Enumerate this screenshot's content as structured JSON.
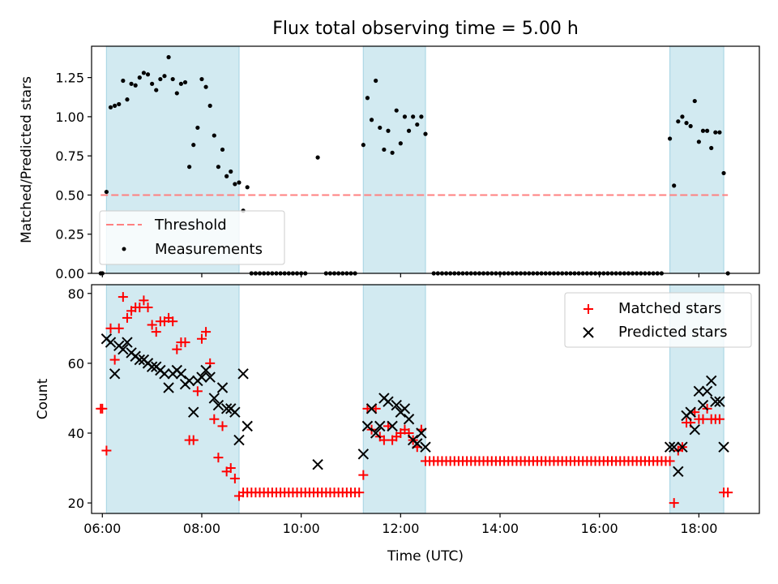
{
  "chart_data": {
    "title": "Flux total observing time = 5.00 h",
    "xlabel": "Time (UTC)",
    "xlim": [
      "05:47",
      "19:13"
    ],
    "x_ticks": [
      "06:00",
      "08:00",
      "10:00",
      "12:00",
      "14:00",
      "16:00",
      "18:00"
    ],
    "shaded_intervals": [
      [
        "06:05",
        "08:45"
      ],
      [
        "11:15",
        "12:30"
      ],
      [
        "17:25",
        "18:30"
      ]
    ],
    "colors": {
      "shade": "#add8e6",
      "threshold": "#ff8080",
      "matched": "#ff0000",
      "predicted": "#000000"
    },
    "top": {
      "type": "scatter",
      "ylabel": "Matched/Predicted stars",
      "ylim": [
        0,
        1.45
      ],
      "y_ticks": [
        0.0,
        0.25,
        0.5,
        0.75,
        1.0,
        1.25
      ],
      "legend_position": "lower-left",
      "threshold": {
        "name": "Threshold",
        "value": 0.5,
        "x_range": [
          "05:58",
          "18:35"
        ]
      },
      "measurements": {
        "name": "Measurements",
        "points": [
          [
            "05:58",
            0.0
          ],
          [
            "06:00",
            0.0
          ],
          [
            "06:05",
            0.52
          ],
          [
            "06:10",
            1.06
          ],
          [
            "06:15",
            1.07
          ],
          [
            "06:20",
            1.08
          ],
          [
            "06:25",
            1.23
          ],
          [
            "06:30",
            1.11
          ],
          [
            "06:35",
            1.21
          ],
          [
            "06:40",
            1.2
          ],
          [
            "06:45",
            1.25
          ],
          [
            "06:50",
            1.28
          ],
          [
            "06:55",
            1.27
          ],
          [
            "07:00",
            1.21
          ],
          [
            "07:05",
            1.17
          ],
          [
            "07:10",
            1.24
          ],
          [
            "07:15",
            1.26
          ],
          [
            "07:20",
            1.38
          ],
          [
            "07:25",
            1.24
          ],
          [
            "07:30",
            1.15
          ],
          [
            "07:35",
            1.21
          ],
          [
            "07:40",
            1.22
          ],
          [
            "07:45",
            0.68
          ],
          [
            "07:50",
            0.82
          ],
          [
            "07:55",
            0.93
          ],
          [
            "08:00",
            1.24
          ],
          [
            "08:05",
            1.19
          ],
          [
            "08:10",
            1.07
          ],
          [
            "08:15",
            0.88
          ],
          [
            "08:20",
            0.68
          ],
          [
            "08:25",
            0.79
          ],
          [
            "08:30",
            0.62
          ],
          [
            "08:35",
            0.65
          ],
          [
            "08:40",
            0.57
          ],
          [
            "08:45",
            0.58
          ],
          [
            "08:50",
            0.4
          ],
          [
            "08:55",
            0.55
          ],
          [
            "10:20",
            0.74
          ],
          [
            "11:15",
            0.82
          ],
          [
            "11:20",
            1.12
          ],
          [
            "11:25",
            0.98
          ],
          [
            "11:30",
            1.23
          ],
          [
            "11:35",
            0.93
          ],
          [
            "11:40",
            0.79
          ],
          [
            "11:45",
            0.91
          ],
          [
            "11:50",
            0.77
          ],
          [
            "11:55",
            1.04
          ],
          [
            "12:00",
            0.83
          ],
          [
            "12:05",
            1.0
          ],
          [
            "12:10",
            0.91
          ],
          [
            "12:15",
            1.0
          ],
          [
            "12:20",
            0.95
          ],
          [
            "12:25",
            1.0
          ],
          [
            "12:30",
            0.89
          ],
          [
            "17:25",
            0.86
          ],
          [
            "17:30",
            0.56
          ],
          [
            "17:35",
            0.97
          ],
          [
            "17:40",
            1.0
          ],
          [
            "17:45",
            0.96
          ],
          [
            "17:50",
            0.94
          ],
          [
            "17:55",
            1.1
          ],
          [
            "18:00",
            0.84
          ],
          [
            "18:05",
            0.91
          ],
          [
            "18:10",
            0.91
          ],
          [
            "18:15",
            0.8
          ],
          [
            "18:20",
            0.9
          ],
          [
            "18:25",
            0.9
          ],
          [
            "18:30",
            0.64
          ],
          [
            "18:35",
            0.0
          ]
        ],
        "zero_intervals": [
          {
            "from": "09:00",
            "to": "10:05",
            "step_min": 5
          },
          {
            "from": "10:30",
            "to": "11:05",
            "step_min": 5
          },
          {
            "from": "12:40",
            "to": "17:15",
            "step_min": 5
          }
        ]
      }
    },
    "bottom": {
      "type": "scatter",
      "ylabel": "Count",
      "ylim": [
        17,
        82.5
      ],
      "y_ticks": [
        20,
        40,
        60,
        80
      ],
      "legend_position": "upper-right",
      "series": [
        {
          "name": "Matched stars",
          "marker": "plus",
          "points": [
            [
              "05:58",
              47
            ],
            [
              "06:00",
              47
            ],
            [
              "06:05",
              35
            ],
            [
              "06:10",
              70
            ],
            [
              "06:15",
              61
            ],
            [
              "06:20",
              70
            ],
            [
              "06:25",
              79
            ],
            [
              "06:30",
              73
            ],
            [
              "06:35",
              75
            ],
            [
              "06:40",
              76
            ],
            [
              "06:45",
              76
            ],
            [
              "06:50",
              78
            ],
            [
              "06:55",
              76
            ],
            [
              "07:00",
              71
            ],
            [
              "07:05",
              69
            ],
            [
              "07:10",
              72
            ],
            [
              "07:15",
              72
            ],
            [
              "07:20",
              73
            ],
            [
              "07:25",
              72
            ],
            [
              "07:30",
              64
            ],
            [
              "07:35",
              66
            ],
            [
              "07:40",
              66
            ],
            [
              "07:45",
              38
            ],
            [
              "07:50",
              38
            ],
            [
              "07:55",
              52
            ],
            [
              "08:00",
              67
            ],
            [
              "08:05",
              69
            ],
            [
              "08:10",
              60
            ],
            [
              "08:15",
              44
            ],
            [
              "08:20",
              33
            ],
            [
              "08:25",
              42
            ],
            [
              "08:30",
              29
            ],
            [
              "08:35",
              30
            ],
            [
              "08:40",
              27
            ],
            [
              "08:45",
              22
            ],
            [
              "11:15",
              28
            ],
            [
              "11:20",
              47
            ],
            [
              "11:25",
              41
            ],
            [
              "11:30",
              47
            ],
            [
              "11:35",
              39
            ],
            [
              "11:40",
              38
            ],
            [
              "11:45",
              42
            ],
            [
              "11:50",
              38
            ],
            [
              "11:55",
              39
            ],
            [
              "12:00",
              40
            ],
            [
              "12:05",
              41
            ],
            [
              "12:10",
              40
            ],
            [
              "12:15",
              38
            ],
            [
              "12:20",
              36
            ],
            [
              "12:25",
              41
            ],
            [
              "12:30",
              32
            ],
            [
              "17:25",
              32
            ],
            [
              "17:30",
              20
            ],
            [
              "17:35",
              35
            ],
            [
              "17:40",
              36
            ],
            [
              "17:45",
              43
            ],
            [
              "17:50",
              43
            ],
            [
              "17:55",
              46
            ],
            [
              "18:00",
              44
            ],
            [
              "18:05",
              44
            ],
            [
              "18:10",
              47
            ],
            [
              "18:15",
              44
            ],
            [
              "18:20",
              44
            ],
            [
              "18:25",
              44
            ],
            [
              "18:30",
              23
            ],
            [
              "18:35",
              23
            ]
          ],
          "const_intervals": [
            {
              "from": "08:50",
              "to": "11:10",
              "step_min": 5,
              "value": 23
            },
            {
              "from": "12:35",
              "to": "17:20",
              "step_min": 5,
              "value": 32
            }
          ]
        },
        {
          "name": "Predicted stars",
          "marker": "cross",
          "points": [
            [
              "06:05",
              67
            ],
            [
              "06:10",
              66
            ],
            [
              "06:15",
              57
            ],
            [
              "06:20",
              65
            ],
            [
              "06:25",
              64
            ],
            [
              "06:30",
              66
            ],
            [
              "06:35",
              63
            ],
            [
              "06:40",
              62
            ],
            [
              "06:45",
              61
            ],
            [
              "06:50",
              61
            ],
            [
              "06:55",
              60
            ],
            [
              "07:00",
              59
            ],
            [
              "07:05",
              59
            ],
            [
              "07:10",
              58
            ],
            [
              "07:15",
              57
            ],
            [
              "07:20",
              53
            ],
            [
              "07:25",
              57
            ],
            [
              "07:30",
              58
            ],
            [
              "07:35",
              57
            ],
            [
              "07:40",
              54
            ],
            [
              "07:45",
              55
            ],
            [
              "07:50",
              46
            ],
            [
              "07:55",
              55
            ],
            [
              "08:00",
              56
            ],
            [
              "08:05",
              58
            ],
            [
              "08:10",
              56
            ],
            [
              "08:15",
              50
            ],
            [
              "08:20",
              48
            ],
            [
              "08:25",
              53
            ],
            [
              "08:30",
              47
            ],
            [
              "08:35",
              47
            ],
            [
              "08:40",
              46
            ],
            [
              "08:45",
              38
            ],
            [
              "08:50",
              57
            ],
            [
              "08:55",
              42
            ],
            [
              "10:20",
              31
            ],
            [
              "11:15",
              34
            ],
            [
              "11:20",
              42
            ],
            [
              "11:25",
              47
            ],
            [
              "11:30",
              40
            ],
            [
              "11:35",
              42
            ],
            [
              "11:40",
              50
            ],
            [
              "11:45",
              49
            ],
            [
              "11:50",
              42
            ],
            [
              "11:55",
              48
            ],
            [
              "12:00",
              46
            ],
            [
              "12:05",
              47
            ],
            [
              "12:10",
              44
            ],
            [
              "12:15",
              38
            ],
            [
              "12:20",
              37
            ],
            [
              "12:25",
              40
            ],
            [
              "12:30",
              36
            ],
            [
              "17:25",
              36
            ],
            [
              "17:30",
              36
            ],
            [
              "17:35",
              29
            ],
            [
              "17:40",
              36
            ],
            [
              "17:45",
              45
            ],
            [
              "17:50",
              46
            ],
            [
              "17:55",
              41
            ],
            [
              "18:00",
              52
            ],
            [
              "18:05",
              48
            ],
            [
              "18:10",
              52
            ],
            [
              "18:15",
              55
            ],
            [
              "18:20",
              49
            ],
            [
              "18:25",
              49
            ],
            [
              "18:30",
              36
            ]
          ]
        }
      ]
    }
  }
}
